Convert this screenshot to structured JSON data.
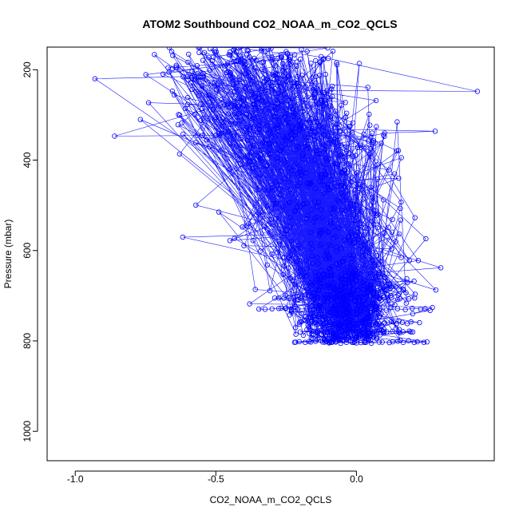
{
  "chart_data": {
    "type": "scatter",
    "title": "ATOM2 Southbound CO2_NOAA_m_CO2_QCLS",
    "xlabel": "CO2_NOAA_m_CO2_QCLS",
    "ylabel": "Pressure (mbar)",
    "xlim": [
      -1.1,
      0.49
    ],
    "ylim": [
      1065,
      150
    ],
    "y_reversed": true,
    "grid": false,
    "legend": "none",
    "x_ticks": [
      -1.0,
      -0.5,
      0.0
    ],
    "x_tick_labels": [
      "-1.0",
      "-0.5",
      "0.0"
    ],
    "y_ticks": [
      200,
      400,
      600,
      800,
      1000
    ],
    "y_tick_labels": [
      "200",
      "400",
      "600",
      "800",
      "1000"
    ],
    "series": [
      {
        "style": "points-and-lines",
        "color": "#0000ff",
        "points_sample": [
          [
            -0.93,
            220
          ],
          [
            -0.6,
            215
          ],
          [
            -0.4,
            180
          ],
          [
            -0.25,
            160
          ],
          [
            -0.1,
            175
          ],
          [
            0.43,
            248
          ],
          [
            -0.3,
            245
          ],
          [
            -0.86,
            347
          ],
          [
            -0.5,
            345
          ],
          [
            -0.2,
            330
          ],
          [
            0.28,
            336
          ],
          [
            0.1,
            340
          ],
          [
            -0.45,
            420
          ],
          [
            -0.2,
            450
          ],
          [
            0.15,
            440
          ],
          [
            -0.45,
            578
          ],
          [
            -0.1,
            560
          ],
          [
            0.3,
            638
          ],
          [
            0.05,
            650
          ],
          [
            -0.2,
            640
          ],
          [
            -0.38,
            718
          ],
          [
            -0.05,
            720
          ],
          [
            0.27,
            726
          ],
          [
            0.2,
            740
          ],
          [
            -0.2,
            780
          ],
          [
            0.2,
            780
          ],
          [
            -0.22,
            803
          ],
          [
            0.24,
            803
          ],
          [
            0.0,
            790
          ]
        ]
      }
    ]
  }
}
